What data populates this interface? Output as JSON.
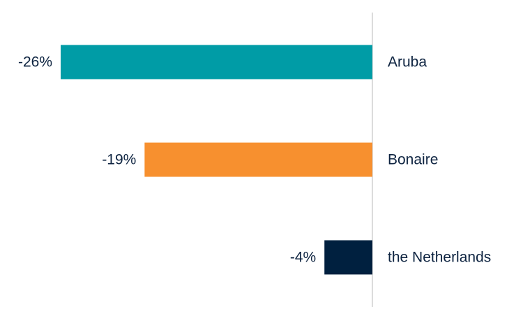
{
  "chart_data": {
    "type": "bar",
    "orientation": "horizontal",
    "categories": [
      "Aruba",
      "Bonaire",
      "the Netherlands"
    ],
    "values": [
      -26,
      -19,
      -4
    ],
    "value_labels": [
      "-26%",
      "-19%",
      "-4%"
    ],
    "colors": [
      "#009ca6",
      "#f7902f",
      "#00203f"
    ],
    "xlim": [
      -30,
      0
    ],
    "unit": "%",
    "grid": false,
    "legend": "none",
    "title": "",
    "xlabel": "",
    "ylabel": ""
  }
}
